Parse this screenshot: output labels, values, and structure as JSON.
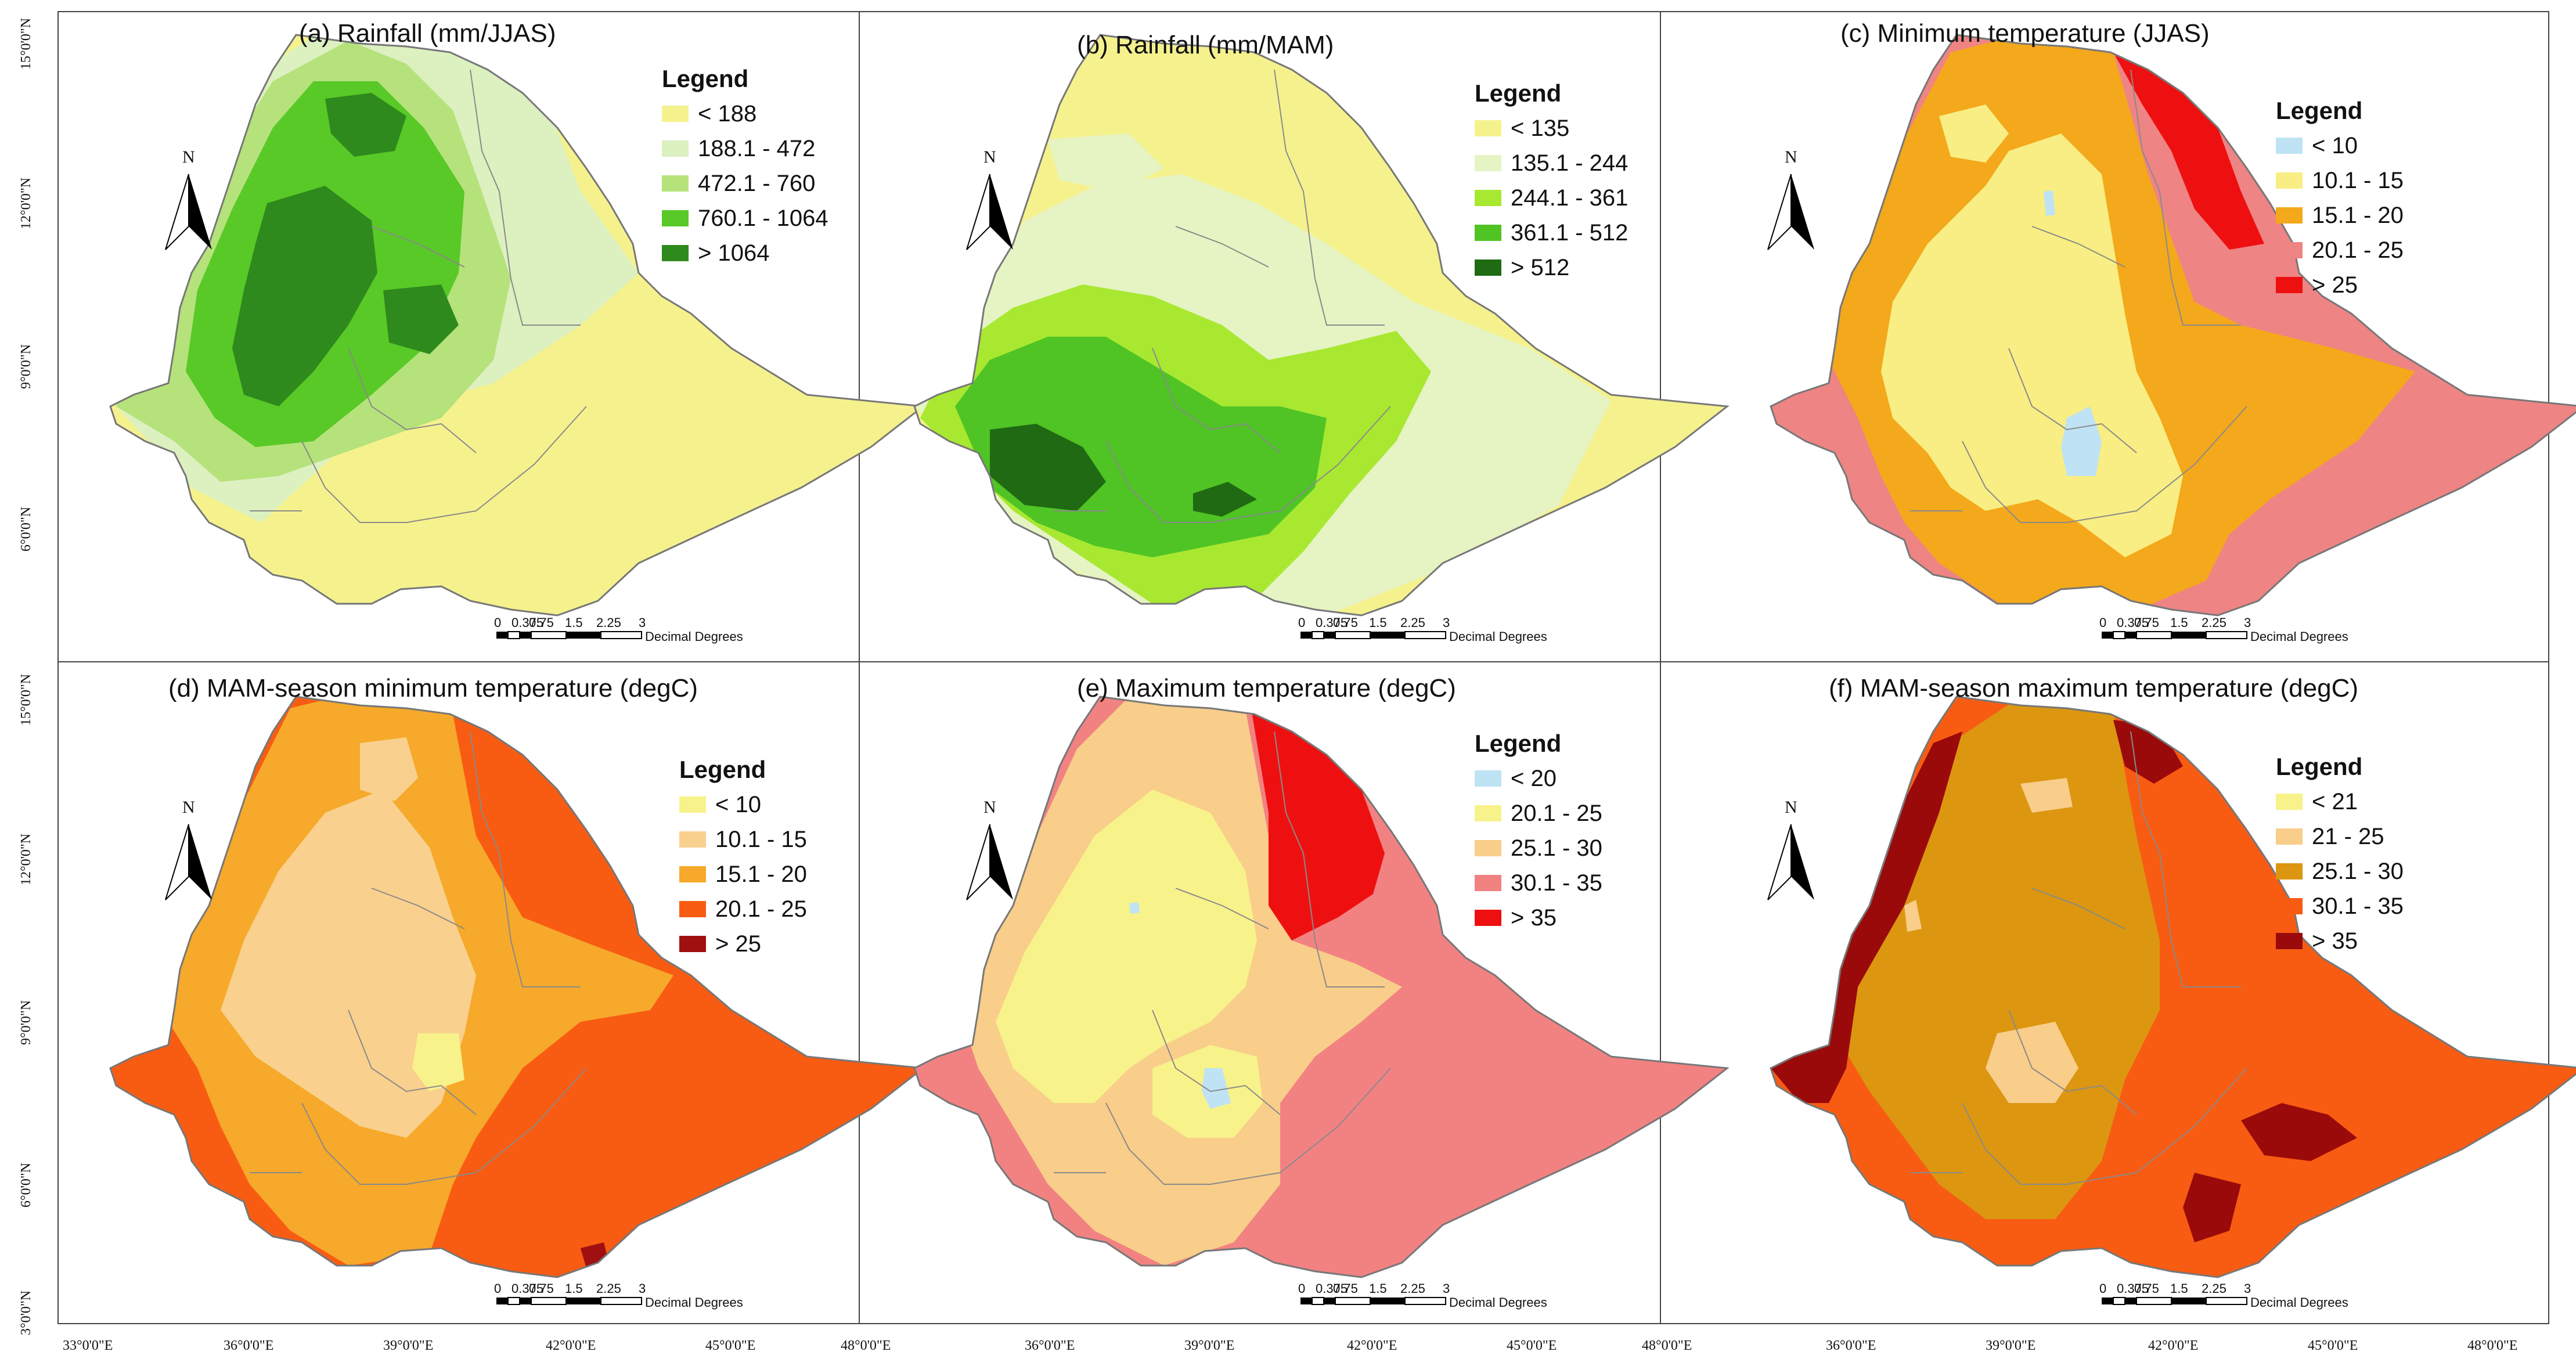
{
  "maps": [
    {
      "title": "(a) Rainfall (mm/JJAS)",
      "legend_title": "Legend",
      "classes": [
        {
          "label": "< 188",
          "color": "#f5f28e"
        },
        {
          "label": "188.1 - 472",
          "color": "#dcf0c0"
        },
        {
          "label": "472.1 - 760",
          "color": "#b5e27a"
        },
        {
          "label": "760.1 - 1064",
          "color": "#58c927"
        },
        {
          "label": "> 1064",
          "color": "#2e8a1c"
        }
      ]
    },
    {
      "title": "(b) Rainfall (mm/MAM)",
      "legend_title": "Legend",
      "classes": [
        {
          "label": "< 135",
          "color": "#f5f28e"
        },
        {
          "label": "135.1 - 244",
          "color": "#e6f3c3"
        },
        {
          "label": "244.1 - 361",
          "color": "#a8e831"
        },
        {
          "label": "361.1 - 512",
          "color": "#4fc424"
        },
        {
          "label": "> 512",
          "color": "#1f6a12"
        }
      ]
    },
    {
      "title": "(c) Minimum temperature (JJAS)",
      "legend_title": "Legend",
      "classes": [
        {
          "label": "< 10",
          "color": "#bfe3f5"
        },
        {
          "label": "10.1 - 15",
          "color": "#f8ee83"
        },
        {
          "label": "15.1 - 20",
          "color": "#f4a81b"
        },
        {
          "label": "20.1 - 25",
          "color": "#ef8484"
        },
        {
          "label": "> 25",
          "color": "#ee1010"
        }
      ]
    },
    {
      "title": "(d) MAM-season minimum temperature (degC)",
      "legend_title": "Legend",
      "classes": [
        {
          "label": "< 10",
          "color": "#f8f28a"
        },
        {
          "label": "10.1 - 15",
          "color": "#f9d08e"
        },
        {
          "label": "15.1 - 20",
          "color": "#f6a92a"
        },
        {
          "label": "20.1 - 25",
          "color": "#f85c12"
        },
        {
          "label": "> 25",
          "color": "#a01010"
        }
      ]
    },
    {
      "title": "(e) Maximum temperature (degC)",
      "legend_title": "Legend",
      "classes": [
        {
          "label": "< 20",
          "color": "#bfe3f5"
        },
        {
          "label": "20.1 - 25",
          "color": "#f8f28a"
        },
        {
          "label": "25.1 - 30",
          "color": "#f9cd8a"
        },
        {
          "label": "30.1 - 35",
          "color": "#f28282"
        },
        {
          "label": "> 35",
          "color": "#ee1010"
        }
      ]
    },
    {
      "title": "(f) MAM-season maximum temperature (degC)",
      "legend_title": "Legend",
      "classes": [
        {
          "label": "< 21",
          "color": "#f8f28a"
        },
        {
          "label": "21 - 25",
          "color": "#f9cd8a"
        },
        {
          "label": "25.1 - 30",
          "color": "#dc9610"
        },
        {
          "label": "30.1 - 35",
          "color": "#f85c12"
        },
        {
          "label": "> 35",
          "color": "#9a0a0a"
        }
      ]
    }
  ],
  "scale_bar": {
    "ticks": [
      "0",
      "0.375",
      "0.75",
      "1.5",
      "2.25",
      "3"
    ],
    "unit": "Decimal Degrees"
  },
  "north_label": "N",
  "x_axis": [
    "33°0'0\"E",
    "36°0'0\"E",
    "39°0'0\"E",
    "42°0'0\"E",
    "45°0'0\"E",
    "48°0'0\"E",
    "36°0'0\"E",
    "39°0'0\"E",
    "42°0'0\"E",
    "45°0'0\"E",
    "48°0'0\"E",
    "36°0'0\"E",
    "39°0'0\"E",
    "42°0'0\"E",
    "45°0'0\"E",
    "48°0'0\"E"
  ],
  "y_axis": [
    "15°0'0\"N",
    "12°0'0\"N",
    "9°0'0\"N",
    "6°0'0\"N",
    "15°0'0\"N",
    "12°0'0\"N",
    "9°0'0\"N",
    "6°0'0\"N",
    "3°0'0\"N"
  ]
}
